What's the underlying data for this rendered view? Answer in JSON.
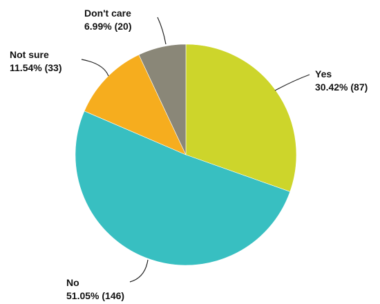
{
  "chart_data": {
    "type": "pie",
    "title": "",
    "start_angle_deg": 0,
    "direction": "clockwise",
    "slices": [
      {
        "name": "Yes",
        "value": 87,
        "percent": "30.42%",
        "value_label": "30.42% (87)",
        "color": "#cdd52b"
      },
      {
        "name": "No",
        "value": 146,
        "percent": "51.05%",
        "value_label": "51.05% (146)",
        "color": "#38bfc1"
      },
      {
        "name": "Not sure",
        "value": 33,
        "percent": "11.54%",
        "value_label": "11.54% (33)",
        "color": "#f6ad1e"
      },
      {
        "name": "Don't care",
        "value": 20,
        "percent": "6.99%",
        "value_label": "6.99% (20)",
        "color": "#8a8778"
      }
    ]
  }
}
